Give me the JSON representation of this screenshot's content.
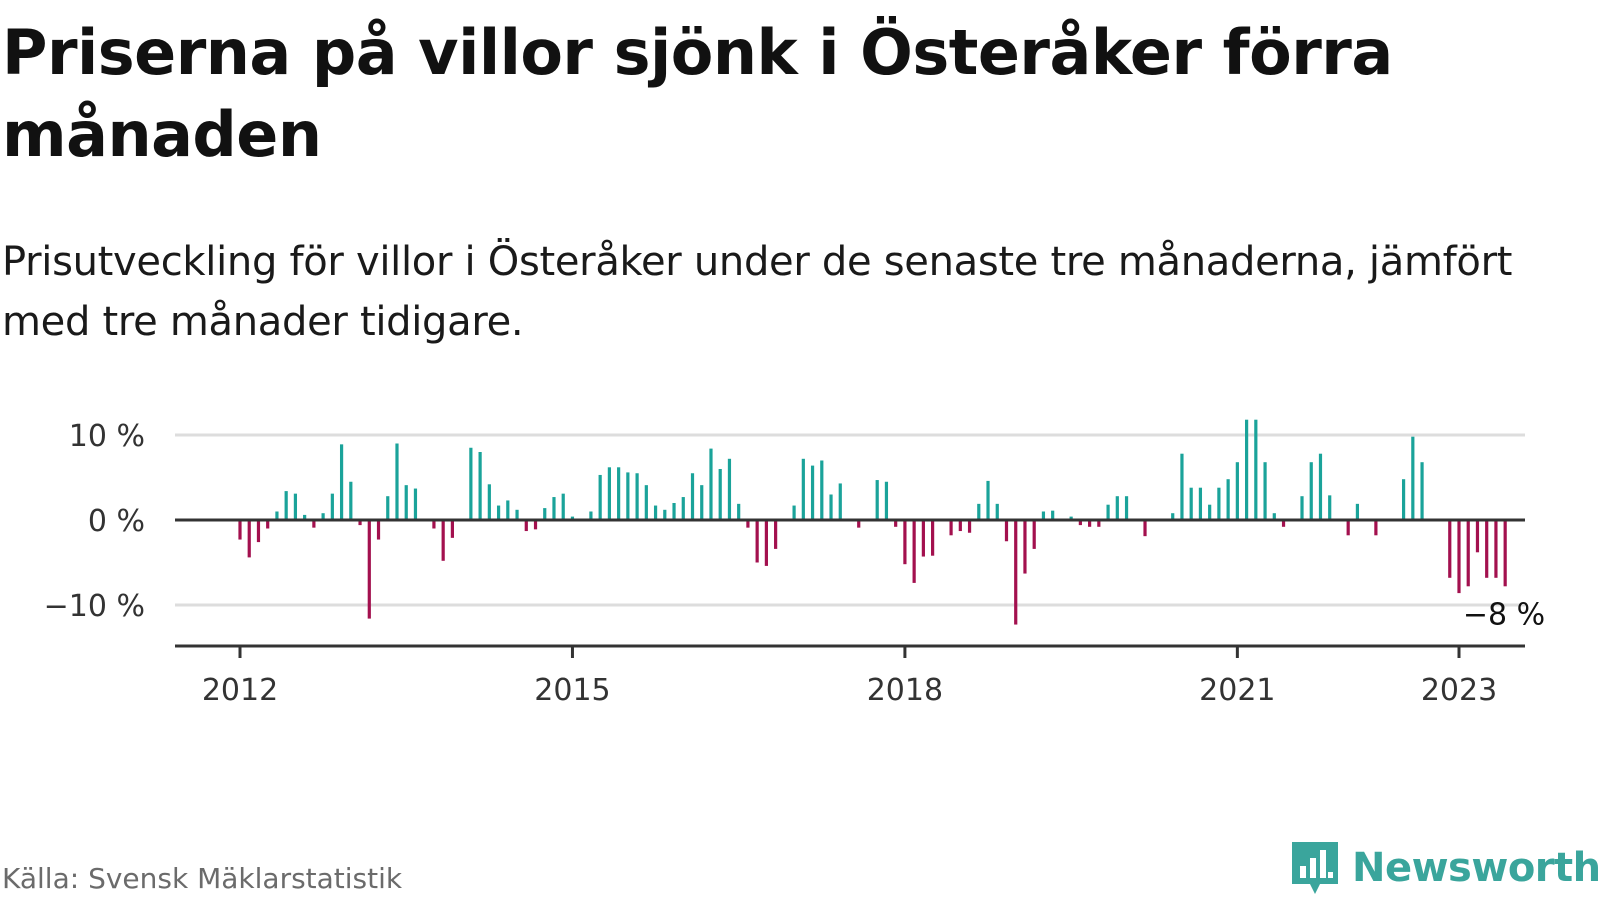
{
  "title": "Priserna på villor sjönk i Österåker förra månaden",
  "subtitle": "Prisutveckling för villor i Österåker under de senaste tre månaderna, jämfört med tre månader tidigare.",
  "source": "Källa: Svensk Mäklarstatistik",
  "brand": {
    "name": "Newsworthy",
    "icon": "newsworthy-logo-icon",
    "color": "#3aa59c"
  },
  "chart_data": {
    "type": "bar",
    "x_start": "2012-01",
    "x_end": "2023-01",
    "ylim": [
      -14,
      11
    ],
    "y_ticks": [
      {
        "value": 10,
        "label": "10 %"
      },
      {
        "value": 0,
        "label": "0 %"
      },
      {
        "value": -10,
        "label": "−10 %"
      }
    ],
    "x_ticks": [
      {
        "date": "2012-01",
        "label": "2012"
      },
      {
        "date": "2015-01",
        "label": "2015"
      },
      {
        "date": "2018-01",
        "label": "2018"
      },
      {
        "date": "2021-01",
        "label": "2021"
      },
      {
        "date": "2023-01",
        "label": "2023"
      }
    ],
    "grid": true,
    "colors": {
      "positive": "#1aa39a",
      "negative": "#a3104e",
      "grid": "#dddddd",
      "axis": "#333333"
    },
    "last_value_label": "−8 %",
    "values": [
      -2.3,
      -4.4,
      -2.6,
      -1.0,
      1.0,
      3.4,
      3.1,
      0.6,
      -0.9,
      0.8,
      3.1,
      8.9,
      4.5,
      -0.6,
      -11.6,
      -2.3,
      2.8,
      9.0,
      4.1,
      3.7,
      0.0,
      -1.0,
      -4.8,
      -2.1,
      0.0,
      8.5,
      8.0,
      4.2,
      1.7,
      2.3,
      1.2,
      -1.3,
      -1.1,
      1.4,
      2.7,
      3.1,
      0.4,
      0.0,
      1.0,
      5.3,
      6.2,
      6.2,
      5.6,
      5.5,
      4.1,
      1.7,
      1.2,
      2.0,
      2.7,
      5.5,
      4.1,
      8.4,
      6.0,
      7.2,
      1.9,
      -0.9,
      -5.0,
      -5.4,
      -3.4,
      0.0,
      1.7,
      7.2,
      6.4,
      7.0,
      3.0,
      4.3,
      0.0,
      -0.9,
      0.0,
      4.7,
      4.5,
      -0.8,
      -5.2,
      -7.4,
      -4.3,
      -4.2,
      0.0,
      -1.8,
      -1.3,
      -1.5,
      1.9,
      4.6,
      1.9,
      -2.5,
      -12.3,
      -6.3,
      -3.4,
      1.0,
      1.1,
      0.0,
      0.4,
      -0.6,
      -0.8,
      -0.8,
      1.8,
      2.8,
      2.8,
      0.0,
      -1.9,
      0.0,
      0.0,
      0.8,
      7.8,
      3.8,
      3.8,
      1.8,
      3.8,
      4.8,
      6.8,
      11.8,
      11.8,
      6.8,
      0.8,
      -0.8,
      0.0,
      2.8,
      6.8,
      7.8,
      2.9,
      0.0,
      -1.8,
      1.9,
      0.0,
      -1.8,
      0.0,
      0.0,
      4.8,
      9.8,
      6.8,
      0.0,
      0.0,
      -6.8,
      -8.6,
      -7.8,
      -3.8,
      -6.8,
      -6.8,
      -7.8
    ]
  }
}
